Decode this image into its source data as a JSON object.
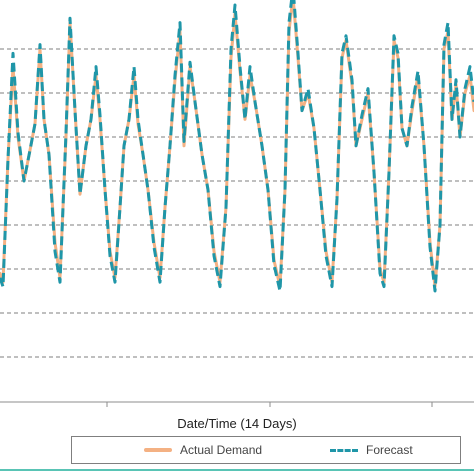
{
  "chart_data": {
    "type": "line",
    "xlabel": "Date/Time (14 Days)",
    "ylabel": "",
    "title": "",
    "ylim": [
      0,
      100
    ],
    "grid": true,
    "legend_position": "bottom",
    "series": [
      {
        "name": "Actual Demand",
        "color": "#f4b183",
        "style": "solid",
        "points": [
          [
            0,
            29
          ],
          [
            3,
            27
          ],
          [
            8,
            55
          ],
          [
            13,
            76
          ],
          [
            18,
            60
          ],
          [
            24,
            50
          ],
          [
            30,
            57
          ],
          [
            35,
            63
          ],
          [
            40,
            80
          ],
          [
            44,
            64
          ],
          [
            49,
            56
          ],
          [
            55,
            36
          ],
          [
            60,
            28
          ],
          [
            66,
            60
          ],
          [
            70,
            86
          ],
          [
            75,
            66
          ],
          [
            80,
            47
          ],
          [
            86,
            58
          ],
          [
            91,
            64
          ],
          [
            96,
            74
          ],
          [
            100,
            64
          ],
          [
            105,
            48
          ],
          [
            110,
            34
          ],
          [
            115,
            28
          ],
          [
            120,
            44
          ],
          [
            124,
            58
          ],
          [
            129,
            64
          ],
          [
            134,
            74
          ],
          [
            138,
            63
          ],
          [
            143,
            56
          ],
          [
            148,
            48
          ],
          [
            154,
            36
          ],
          [
            160,
            28
          ],
          [
            165,
            44
          ],
          [
            170,
            58
          ],
          [
            175,
            73
          ],
          [
            180,
            84
          ],
          [
            184,
            58
          ],
          [
            190,
            76
          ],
          [
            195,
            68
          ],
          [
            202,
            56
          ],
          [
            208,
            48
          ],
          [
            214,
            34
          ],
          [
            220,
            27
          ],
          [
            226,
            44
          ],
          [
            231,
            78
          ],
          [
            235,
            88
          ],
          [
            240,
            75
          ],
          [
            245,
            64
          ],
          [
            250,
            74
          ],
          [
            255,
            68
          ],
          [
            262,
            58
          ],
          [
            268,
            48
          ],
          [
            274,
            32
          ],
          [
            280,
            26
          ],
          [
            285,
            48
          ],
          [
            289,
            84
          ],
          [
            293,
            92
          ],
          [
            298,
            78
          ],
          [
            302,
            66
          ],
          [
            308,
            70
          ],
          [
            314,
            62
          ],
          [
            320,
            48
          ],
          [
            326,
            34
          ],
          [
            332,
            27
          ],
          [
            337,
            46
          ],
          [
            342,
            78
          ],
          [
            346,
            82
          ],
          [
            352,
            72
          ],
          [
            356,
            58
          ],
          [
            362,
            64
          ],
          [
            368,
            70
          ],
          [
            374,
            52
          ],
          [
            380,
            30
          ],
          [
            384,
            27
          ],
          [
            389,
            52
          ],
          [
            394,
            82
          ],
          [
            398,
            78
          ],
          [
            402,
            62
          ],
          [
            407,
            58
          ],
          [
            412,
            66
          ],
          [
            418,
            74
          ],
          [
            424,
            58
          ],
          [
            430,
            36
          ],
          [
            435,
            26
          ],
          [
            440,
            40
          ],
          [
            444,
            80
          ],
          [
            448,
            84
          ],
          [
            452,
            64
          ],
          [
            456,
            72
          ],
          [
            460,
            60
          ],
          [
            465,
            70
          ],
          [
            470,
            74
          ],
          [
            474,
            66
          ]
        ]
      },
      {
        "name": "Forecast",
        "color": "#1f96a8",
        "style": "dashed",
        "points": [
          [
            0,
            28
          ],
          [
            3,
            26
          ],
          [
            8,
            55
          ],
          [
            13,
            79
          ],
          [
            18,
            61
          ],
          [
            24,
            50
          ],
          [
            30,
            57
          ],
          [
            35,
            63
          ],
          [
            40,
            81
          ],
          [
            44,
            64
          ],
          [
            49,
            56
          ],
          [
            55,
            34
          ],
          [
            60,
            27
          ],
          [
            66,
            61
          ],
          [
            70,
            87
          ],
          [
            75,
            66
          ],
          [
            80,
            47
          ],
          [
            86,
            58
          ],
          [
            91,
            64
          ],
          [
            96,
            76
          ],
          [
            100,
            65
          ],
          [
            105,
            48
          ],
          [
            110,
            33
          ],
          [
            115,
            27
          ],
          [
            120,
            44
          ],
          [
            124,
            58
          ],
          [
            129,
            64
          ],
          [
            134,
            76
          ],
          [
            138,
            64
          ],
          [
            143,
            56
          ],
          [
            148,
            48
          ],
          [
            154,
            35
          ],
          [
            160,
            27
          ],
          [
            165,
            44
          ],
          [
            170,
            58
          ],
          [
            175,
            74
          ],
          [
            180,
            86
          ],
          [
            184,
            59
          ],
          [
            190,
            77
          ],
          [
            195,
            68
          ],
          [
            202,
            56
          ],
          [
            208,
            48
          ],
          [
            214,
            33
          ],
          [
            220,
            26
          ],
          [
            226,
            44
          ],
          [
            231,
            80
          ],
          [
            235,
            90
          ],
          [
            240,
            76
          ],
          [
            245,
            64
          ],
          [
            250,
            76
          ],
          [
            255,
            68
          ],
          [
            262,
            58
          ],
          [
            268,
            48
          ],
          [
            274,
            31
          ],
          [
            280,
            25
          ],
          [
            285,
            48
          ],
          [
            289,
            86
          ],
          [
            293,
            94
          ],
          [
            298,
            79
          ],
          [
            302,
            66
          ],
          [
            308,
            71
          ],
          [
            314,
            62
          ],
          [
            320,
            48
          ],
          [
            326,
            33
          ],
          [
            332,
            26
          ],
          [
            337,
            46
          ],
          [
            342,
            79
          ],
          [
            346,
            83
          ],
          [
            352,
            73
          ],
          [
            356,
            58
          ],
          [
            362,
            65
          ],
          [
            368,
            71
          ],
          [
            374,
            52
          ],
          [
            380,
            29
          ],
          [
            384,
            26
          ],
          [
            389,
            52
          ],
          [
            394,
            83
          ],
          [
            398,
            79
          ],
          [
            402,
            62
          ],
          [
            407,
            58
          ],
          [
            412,
            67
          ],
          [
            418,
            75
          ],
          [
            424,
            58
          ],
          [
            430,
            35
          ],
          [
            435,
            25
          ],
          [
            440,
            40
          ],
          [
            444,
            81
          ],
          [
            448,
            86
          ],
          [
            452,
            64
          ],
          [
            456,
            73
          ],
          [
            460,
            60
          ],
          [
            465,
            71
          ],
          [
            470,
            76
          ],
          [
            474,
            68
          ]
        ]
      }
    ]
  }
}
